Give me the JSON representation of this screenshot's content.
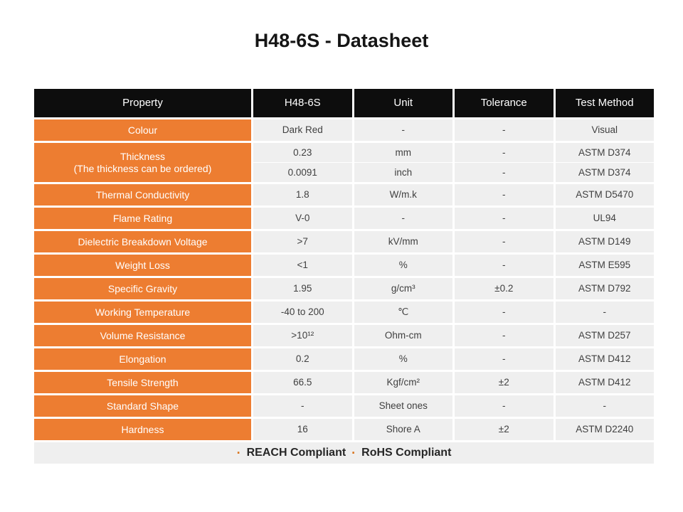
{
  "title": "H48-6S - Datasheet",
  "table": {
    "headers": [
      "Property",
      "H48-6S",
      "Unit",
      "Tolerance",
      "Test Method"
    ],
    "rows": [
      {
        "property": "Colour",
        "value": "Dark Red",
        "unit": "-",
        "tolerance": "-",
        "method": "Visual"
      },
      {
        "property_line1": "Thickness",
        "property_line2": "(The thickness can be ordered)",
        "sub": [
          {
            "value": "0.23",
            "unit": "mm",
            "tolerance": "-",
            "method": "ASTM D374"
          },
          {
            "value": "0.0091",
            "unit": "inch",
            "tolerance": "-",
            "method": "ASTM D374"
          }
        ]
      },
      {
        "property": "Thermal Conductivity",
        "value": "1.8",
        "unit": "W/m.k",
        "tolerance": "-",
        "method": "ASTM D5470"
      },
      {
        "property": "Flame Rating",
        "value": "V-0",
        "unit": "-",
        "tolerance": "-",
        "method": "UL94"
      },
      {
        "property": "Dielectric Breakdown Voltage",
        "value": ">7",
        "unit": "kV/mm",
        "tolerance": "-",
        "method": "ASTM D149"
      },
      {
        "property": "Weight Loss",
        "value": "<1",
        "unit": "%",
        "tolerance": "-",
        "method": "ASTM E595"
      },
      {
        "property": "Specific Gravity",
        "value": "1.95",
        "unit": "g/cm³",
        "tolerance": "±0.2",
        "method": "ASTM D792"
      },
      {
        "property": "Working Temperature",
        "value": "-40 to 200",
        "unit": "℃",
        "tolerance": "-",
        "method": "-"
      },
      {
        "property": "Volume Resistance",
        "value": ">10¹²",
        "unit": "Ohm-cm",
        "tolerance": "-",
        "method": "ASTM D257"
      },
      {
        "property": "Elongation",
        "value": "0.2",
        "unit": "%",
        "tolerance": "-",
        "method": "ASTM D412"
      },
      {
        "property": "Tensile Strength",
        "value": "66.5",
        "unit": "Kgf/cm²",
        "tolerance": "±2",
        "method": "ASTM D412"
      },
      {
        "property": "Standard Shape",
        "value": "-",
        "unit": "Sheet ones",
        "tolerance": "-",
        "method": "-"
      },
      {
        "property": "Hardness",
        "value": "16",
        "unit": "Shore A",
        "tolerance": "±2",
        "method": "ASTM D2240"
      }
    ]
  },
  "footer": {
    "bullet": "·",
    "items": [
      "REACH Compliant",
      "RoHS Compliant"
    ]
  },
  "colors": {
    "accent_orange": "#ed7d31",
    "header_black": "#0d0d0d",
    "cell_gray": "#efefef",
    "data_text": "#404040",
    "bullet_orange": "#d9751e"
  }
}
